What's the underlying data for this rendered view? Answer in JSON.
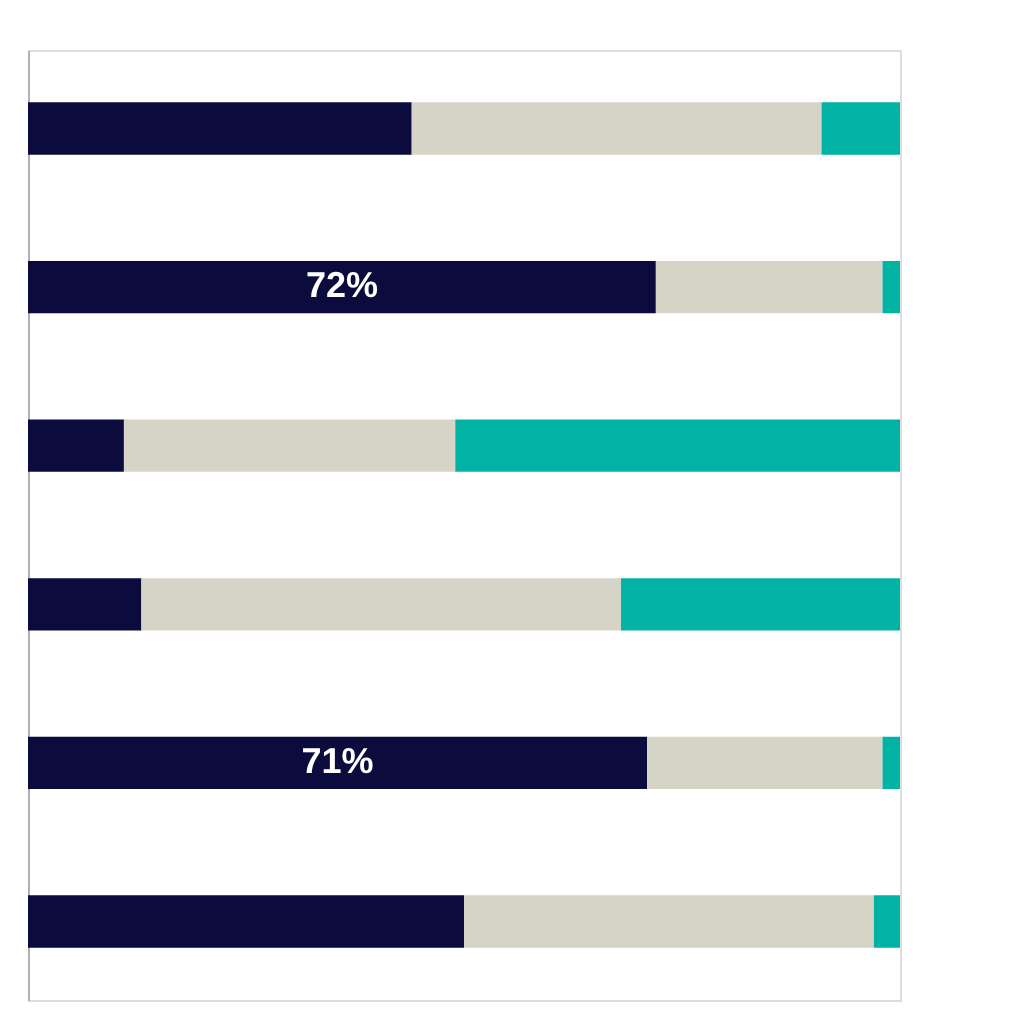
{
  "chart_data": {
    "type": "bar",
    "orientation": "horizontal",
    "stacked": true,
    "categories": [
      null,
      null,
      null,
      null,
      null,
      null
    ],
    "series": [
      {
        "color": "#0b0b3d",
        "values": [
          44,
          72,
          11,
          13,
          71,
          50
        ],
        "value_labels": [
          null,
          "72%",
          null,
          null,
          "71%",
          null
        ]
      },
      {
        "color": "#d6d4c6",
        "values": [
          47,
          26,
          38,
          55,
          27,
          47
        ]
      },
      {
        "color": "#00b3a4",
        "values": [
          9,
          2,
          51,
          32,
          2,
          3
        ]
      }
    ],
    "xlim": [
      0,
      100
    ],
    "tick_labels": false,
    "grid": false,
    "legend": false
  }
}
